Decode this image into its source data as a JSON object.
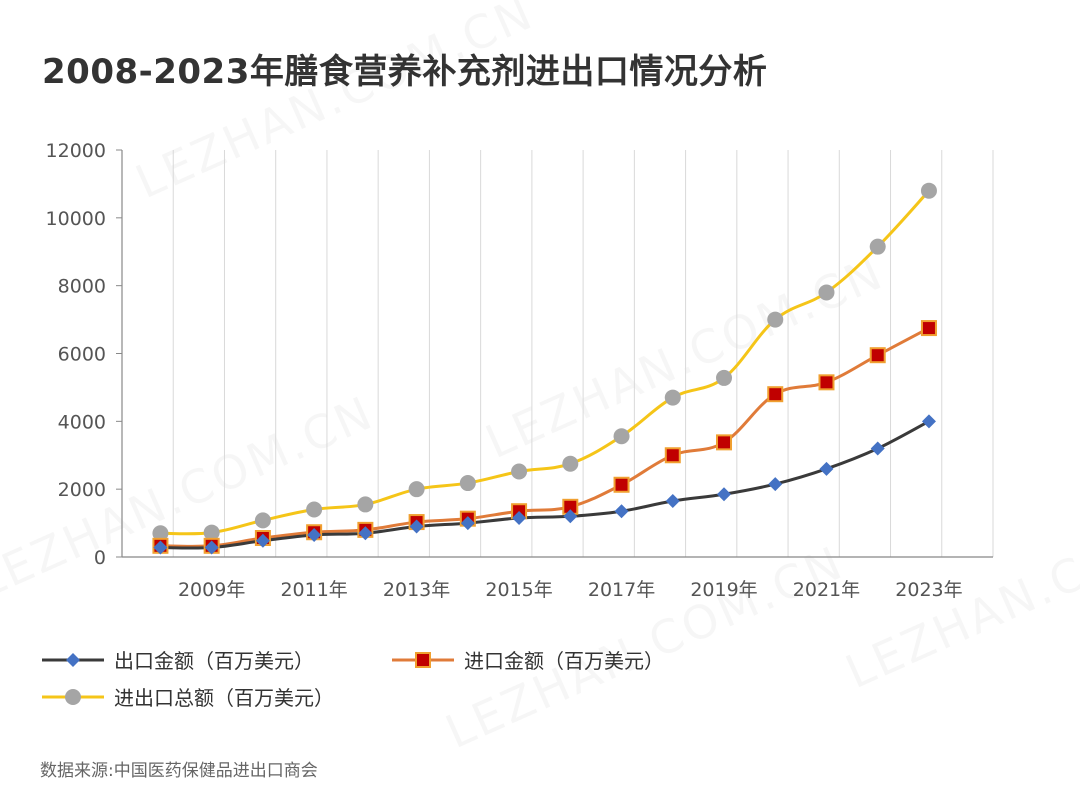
{
  "title": "2008-2023年膳食营养补充剂进出口情况分析",
  "source": "数据来源:中国医药保健品进出口商会",
  "watermark": "LEZHAN.COM.CN",
  "chart_data": {
    "type": "line",
    "categories": [
      "2008",
      "2009",
      "2010",
      "2011",
      "2012",
      "2013",
      "2014",
      "2015",
      "2016",
      "2017",
      "2018",
      "2019",
      "2020",
      "2021",
      "2022",
      "2023"
    ],
    "x_tick_labels": [
      "2009年",
      "2011年",
      "2013年",
      "2015年",
      "2017年",
      "2019年",
      "2021年",
      "2023年"
    ],
    "y_ticks": [
      "0",
      "2000",
      "4000",
      "6000",
      "8000",
      "10000",
      "12000"
    ],
    "ylim": [
      0,
      12000
    ],
    "grid": "vertical",
    "legend_position": "bottom",
    "series": [
      {
        "name": "出口金额（百万美元）",
        "color": "#3a3a3a",
        "marker": "diamond",
        "marker_color": "#4472c4",
        "values": [
          280,
          280,
          480,
          650,
          700,
          900,
          1000,
          1150,
          1200,
          1350,
          1650,
          1850,
          2150,
          2600,
          3200,
          4000
        ]
      },
      {
        "name": "进口金额（百万美元）",
        "color": "#e07b39",
        "marker": "square",
        "marker_color": "#c00000",
        "values": [
          330,
          330,
          560,
          730,
          800,
          1030,
          1130,
          1350,
          1480,
          2130,
          3000,
          3380,
          4800,
          5150,
          5950,
          6750
        ]
      },
      {
        "name": "进出口总额（百万美元）",
        "color": "#f5c518",
        "marker": "circle",
        "marker_color": "#a5a5a5",
        "values": [
          700,
          720,
          1080,
          1400,
          1550,
          2000,
          2180,
          2520,
          2750,
          3560,
          4700,
          5280,
          7000,
          7800,
          9150,
          10800
        ]
      }
    ]
  }
}
